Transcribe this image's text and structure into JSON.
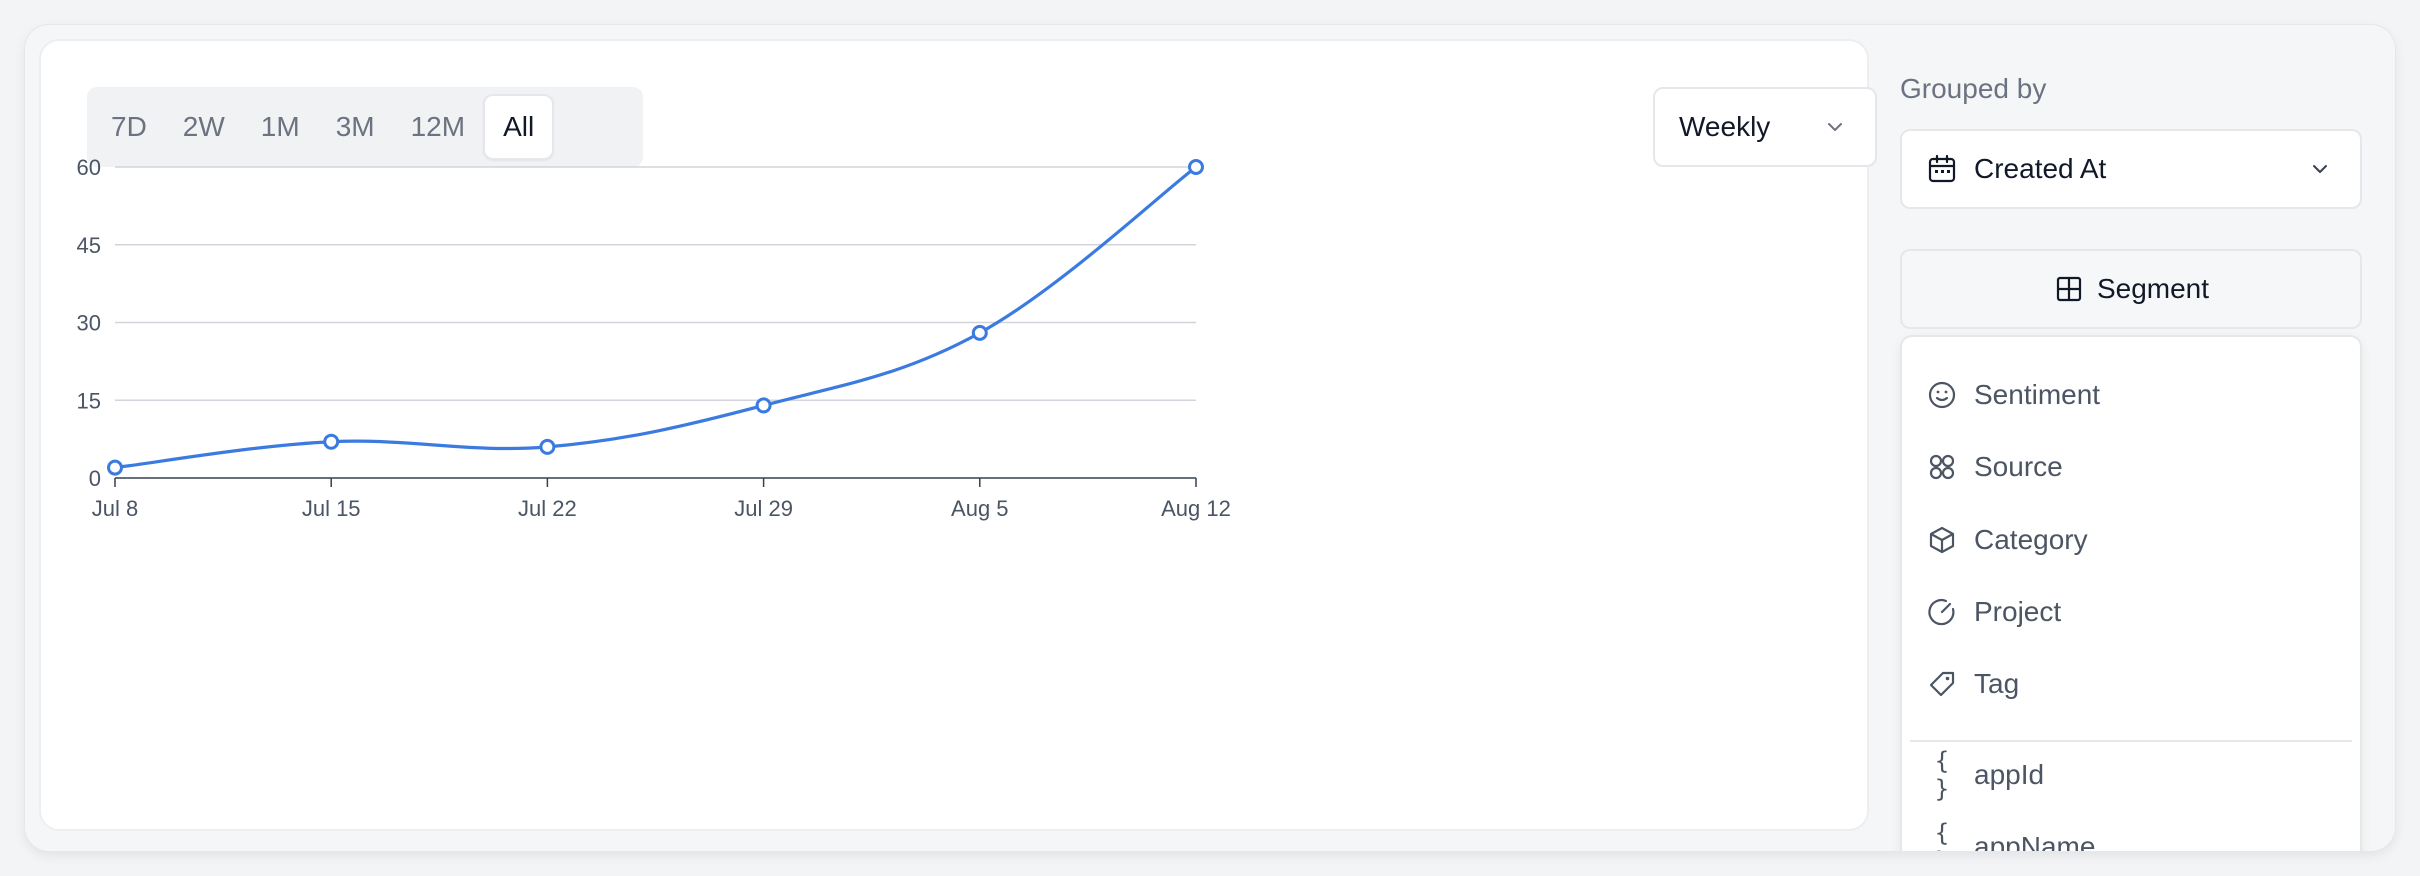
{
  "range": {
    "options": [
      "7D",
      "2W",
      "1M",
      "3M",
      "12M",
      "All"
    ],
    "active": "All"
  },
  "interval": {
    "value": "Weekly"
  },
  "sidebar": {
    "grouped_by_title": "Grouped by",
    "grouped_by_value": "Created At",
    "segment_label": "Segment",
    "menu_items": [
      {
        "label": "Sentiment",
        "icon": "smile-icon"
      },
      {
        "label": "Source",
        "icon": "grid-four-icon"
      },
      {
        "label": "Category",
        "icon": "box-icon"
      },
      {
        "label": "Project",
        "icon": "gauge-icon"
      },
      {
        "label": "Tag",
        "icon": "tag-icon"
      },
      {
        "label": "appId",
        "icon": "braces-icon"
      },
      {
        "label": "appName",
        "icon": "braces-icon"
      }
    ]
  },
  "colors": {
    "line": "#3b7be0",
    "grid": "#d1d5db",
    "axis": "#374151"
  },
  "chart_data": {
    "type": "line",
    "categories": [
      "Jul 8",
      "Jul 15",
      "Jul 22",
      "Jul 29",
      "Aug 5",
      "Aug 12"
    ],
    "values": [
      2,
      7,
      6,
      14,
      28,
      60
    ],
    "yticks": [
      0,
      15,
      30,
      45,
      60
    ],
    "ylim": [
      0,
      60
    ],
    "grid": true
  }
}
